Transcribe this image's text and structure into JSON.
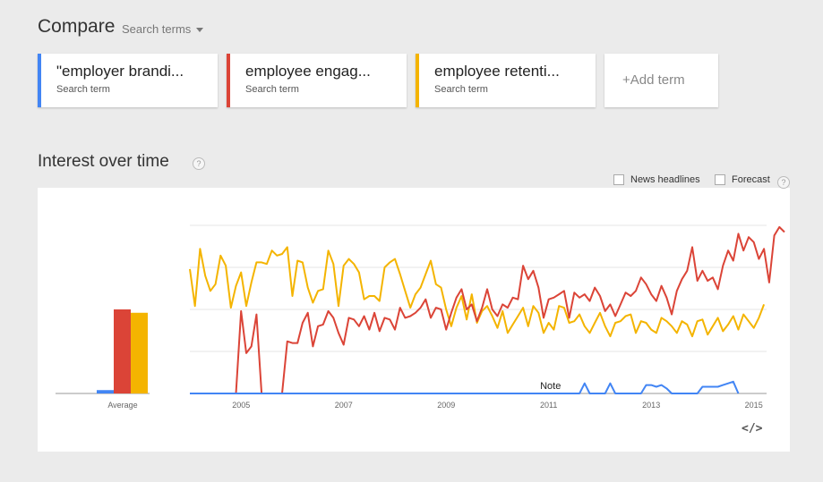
{
  "header": {
    "title": "Compare",
    "dropdown_label": "Search terms"
  },
  "terms": [
    {
      "label": "\"employer brandi...",
      "sub": "Search term",
      "color": "#4285f4"
    },
    {
      "label": "employee engag...",
      "sub": "Search term",
      "color": "#db4437"
    },
    {
      "label": "employee retenti...",
      "sub": "Search term",
      "color": "#f4b400"
    }
  ],
  "add_term": "+Add term",
  "section": {
    "title": "Interest over time",
    "help": "?"
  },
  "options": {
    "news_headlines": "News headlines",
    "forecast": "Forecast",
    "help": "?"
  },
  "note_label": "Note",
  "embed_label": "</>",
  "chart_data": {
    "type": "line",
    "x_ticks": [
      "2005",
      "2007",
      "2009",
      "2011",
      "2013",
      "2015"
    ],
    "xlim": [
      2004,
      2015.25
    ],
    "ylim": [
      0,
      100
    ],
    "grid": true,
    "average_label": "Average",
    "averages": [
      {
        "name": "\"employer branding\"",
        "value": 2,
        "color": "#4285f4"
      },
      {
        "name": "employee engagement",
        "value": 50,
        "color": "#db4437"
      },
      {
        "name": "employee retention",
        "value": 48,
        "color": "#f4b400"
      }
    ],
    "series": [
      {
        "name": "employee retention",
        "color": "#f4b400",
        "points": [
          [
            2004.0,
            74
          ],
          [
            2004.1,
            52
          ],
          [
            2004.2,
            86
          ],
          [
            2004.3,
            70
          ],
          [
            2004.4,
            61
          ],
          [
            2004.5,
            65
          ],
          [
            2004.6,
            82
          ],
          [
            2004.7,
            76
          ],
          [
            2004.8,
            51
          ],
          [
            2004.9,
            64
          ],
          [
            2005.0,
            72
          ],
          [
            2005.1,
            52
          ],
          [
            2005.2,
            66
          ],
          [
            2005.3,
            78
          ],
          [
            2005.4,
            78
          ],
          [
            2005.5,
            77
          ],
          [
            2005.6,
            85
          ],
          [
            2005.7,
            82
          ],
          [
            2005.8,
            83
          ],
          [
            2005.9,
            87
          ],
          [
            2006.0,
            58
          ],
          [
            2006.1,
            79
          ],
          [
            2006.2,
            78
          ],
          [
            2006.3,
            63
          ],
          [
            2006.4,
            54
          ],
          [
            2006.5,
            61
          ],
          [
            2006.6,
            62
          ],
          [
            2006.7,
            85
          ],
          [
            2006.8,
            77
          ],
          [
            2006.9,
            52
          ],
          [
            2007.0,
            76
          ],
          [
            2007.1,
            80
          ],
          [
            2007.2,
            77
          ],
          [
            2007.3,
            72
          ],
          [
            2007.4,
            56
          ],
          [
            2007.5,
            58
          ],
          [
            2007.6,
            58
          ],
          [
            2007.7,
            55
          ],
          [
            2007.8,
            75
          ],
          [
            2007.9,
            78
          ],
          [
            2008.0,
            80
          ],
          [
            2008.1,
            71
          ],
          [
            2008.2,
            61
          ],
          [
            2008.3,
            51
          ],
          [
            2008.4,
            59
          ],
          [
            2008.5,
            63
          ],
          [
            2008.6,
            71
          ],
          [
            2008.7,
            79
          ],
          [
            2008.8,
            65
          ],
          [
            2008.9,
            63
          ],
          [
            2009.0,
            50
          ],
          [
            2009.1,
            40
          ],
          [
            2009.2,
            51
          ],
          [
            2009.3,
            58
          ],
          [
            2009.4,
            44
          ],
          [
            2009.5,
            59
          ],
          [
            2009.6,
            42
          ],
          [
            2009.7,
            49
          ],
          [
            2009.8,
            52
          ],
          [
            2009.9,
            46
          ],
          [
            2010.0,
            39
          ],
          [
            2010.1,
            49
          ],
          [
            2010.2,
            36
          ],
          [
            2010.3,
            41
          ],
          [
            2010.4,
            46
          ],
          [
            2010.5,
            51
          ],
          [
            2010.6,
            40
          ],
          [
            2010.7,
            52
          ],
          [
            2010.8,
            48
          ],
          [
            2010.9,
            36
          ],
          [
            2011.0,
            42
          ],
          [
            2011.1,
            38
          ],
          [
            2011.2,
            52
          ],
          [
            2011.3,
            51
          ],
          [
            2011.4,
            42
          ],
          [
            2011.5,
            43
          ],
          [
            2011.6,
            47
          ],
          [
            2011.7,
            40
          ],
          [
            2011.8,
            36
          ],
          [
            2011.9,
            42
          ],
          [
            2012.0,
            48
          ],
          [
            2012.1,
            40
          ],
          [
            2012.2,
            34
          ],
          [
            2012.3,
            42
          ],
          [
            2012.4,
            43
          ],
          [
            2012.5,
            46
          ],
          [
            2012.6,
            47
          ],
          [
            2012.7,
            36
          ],
          [
            2012.8,
            43
          ],
          [
            2012.9,
            42
          ],
          [
            2013.0,
            38
          ],
          [
            2013.1,
            36
          ],
          [
            2013.2,
            45
          ],
          [
            2013.3,
            43
          ],
          [
            2013.4,
            40
          ],
          [
            2013.5,
            36
          ],
          [
            2013.6,
            43
          ],
          [
            2013.7,
            41
          ],
          [
            2013.8,
            34
          ],
          [
            2013.9,
            43
          ],
          [
            2014.0,
            44
          ],
          [
            2014.1,
            35
          ],
          [
            2014.2,
            40
          ],
          [
            2014.3,
            45
          ],
          [
            2014.4,
            37
          ],
          [
            2014.5,
            41
          ],
          [
            2014.6,
            46
          ],
          [
            2014.7,
            38
          ],
          [
            2014.8,
            47
          ],
          [
            2014.9,
            43
          ],
          [
            2015.0,
            39
          ],
          [
            2015.1,
            45
          ],
          [
            2015.2,
            53
          ]
        ]
      },
      {
        "name": "employee engagement",
        "color": "#db4437",
        "points": [
          [
            2004.0,
            0
          ],
          [
            2004.8,
            0
          ],
          [
            2004.9,
            0
          ],
          [
            2005.0,
            49
          ],
          [
            2005.1,
            24
          ],
          [
            2005.2,
            28
          ],
          [
            2005.3,
            47
          ],
          [
            2005.4,
            0
          ],
          [
            2005.5,
            0
          ],
          [
            2005.6,
            0
          ],
          [
            2005.7,
            0
          ],
          [
            2005.8,
            0
          ],
          [
            2005.9,
            31
          ],
          [
            2006.0,
            30
          ],
          [
            2006.1,
            30
          ],
          [
            2006.2,
            42
          ],
          [
            2006.3,
            48
          ],
          [
            2006.4,
            28
          ],
          [
            2006.5,
            40
          ],
          [
            2006.6,
            41
          ],
          [
            2006.7,
            49
          ],
          [
            2006.8,
            45
          ],
          [
            2006.9,
            36
          ],
          [
            2007.0,
            29
          ],
          [
            2007.1,
            45
          ],
          [
            2007.2,
            44
          ],
          [
            2007.3,
            40
          ],
          [
            2007.4,
            46
          ],
          [
            2007.5,
            38
          ],
          [
            2007.6,
            48
          ],
          [
            2007.7,
            37
          ],
          [
            2007.8,
            45
          ],
          [
            2007.9,
            44
          ],
          [
            2008.0,
            38
          ],
          [
            2008.1,
            51
          ],
          [
            2008.2,
            45
          ],
          [
            2008.3,
            46
          ],
          [
            2008.4,
            48
          ],
          [
            2008.5,
            51
          ],
          [
            2008.6,
            56
          ],
          [
            2008.7,
            45
          ],
          [
            2008.8,
            51
          ],
          [
            2008.9,
            50
          ],
          [
            2009.0,
            38
          ],
          [
            2009.1,
            48
          ],
          [
            2009.2,
            57
          ],
          [
            2009.3,
            62
          ],
          [
            2009.4,
            50
          ],
          [
            2009.5,
            53
          ],
          [
            2009.6,
            43
          ],
          [
            2009.7,
            51
          ],
          [
            2009.8,
            62
          ],
          [
            2009.9,
            50
          ],
          [
            2010.0,
            46
          ],
          [
            2010.1,
            53
          ],
          [
            2010.2,
            51
          ],
          [
            2010.3,
            57
          ],
          [
            2010.4,
            56
          ],
          [
            2010.5,
            76
          ],
          [
            2010.6,
            68
          ],
          [
            2010.7,
            73
          ],
          [
            2010.8,
            63
          ],
          [
            2010.9,
            45
          ],
          [
            2011.0,
            56
          ],
          [
            2011.1,
            57
          ],
          [
            2011.2,
            59
          ],
          [
            2011.3,
            61
          ],
          [
            2011.4,
            45
          ],
          [
            2011.5,
            60
          ],
          [
            2011.6,
            57
          ],
          [
            2011.7,
            59
          ],
          [
            2011.8,
            55
          ],
          [
            2011.9,
            63
          ],
          [
            2012.0,
            58
          ],
          [
            2012.1,
            49
          ],
          [
            2012.2,
            53
          ],
          [
            2012.3,
            46
          ],
          [
            2012.4,
            53
          ],
          [
            2012.5,
            60
          ],
          [
            2012.6,
            58
          ],
          [
            2012.7,
            61
          ],
          [
            2012.8,
            69
          ],
          [
            2012.9,
            65
          ],
          [
            2013.0,
            59
          ],
          [
            2013.1,
            55
          ],
          [
            2013.2,
            64
          ],
          [
            2013.3,
            57
          ],
          [
            2013.4,
            47
          ],
          [
            2013.5,
            61
          ],
          [
            2013.6,
            68
          ],
          [
            2013.7,
            73
          ],
          [
            2013.8,
            87
          ],
          [
            2013.9,
            67
          ],
          [
            2014.0,
            73
          ],
          [
            2014.1,
            67
          ],
          [
            2014.2,
            69
          ],
          [
            2014.3,
            62
          ],
          [
            2014.4,
            76
          ],
          [
            2014.5,
            85
          ],
          [
            2014.6,
            79
          ],
          [
            2014.7,
            95
          ],
          [
            2014.8,
            85
          ],
          [
            2014.9,
            93
          ],
          [
            2015.0,
            90
          ],
          [
            2015.1,
            80
          ],
          [
            2015.2,
            86
          ],
          [
            2015.3,
            66
          ],
          [
            2015.4,
            94
          ],
          [
            2015.5,
            99
          ],
          [
            2015.6,
            96
          ]
        ]
      },
      {
        "name": "\"employer branding\"",
        "color": "#4285f4",
        "points": [
          [
            2004.0,
            0
          ],
          [
            2011.6,
            0
          ],
          [
            2011.7,
            6
          ],
          [
            2011.8,
            0
          ],
          [
            2012.1,
            0
          ],
          [
            2012.2,
            6
          ],
          [
            2012.3,
            0
          ],
          [
            2012.8,
            0
          ],
          [
            2012.9,
            5
          ],
          [
            2013.0,
            5
          ],
          [
            2013.1,
            4
          ],
          [
            2013.2,
            5
          ],
          [
            2013.3,
            3
          ],
          [
            2013.4,
            0
          ],
          [
            2013.9,
            0
          ],
          [
            2014.0,
            4
          ],
          [
            2014.1,
            4
          ],
          [
            2014.2,
            4
          ],
          [
            2014.3,
            4
          ],
          [
            2014.4,
            5
          ],
          [
            2014.5,
            6
          ],
          [
            2014.6,
            7
          ],
          [
            2014.7,
            0
          ]
        ]
      }
    ],
    "annotations": [
      {
        "x": 2011.0,
        "text": "Note"
      }
    ]
  }
}
